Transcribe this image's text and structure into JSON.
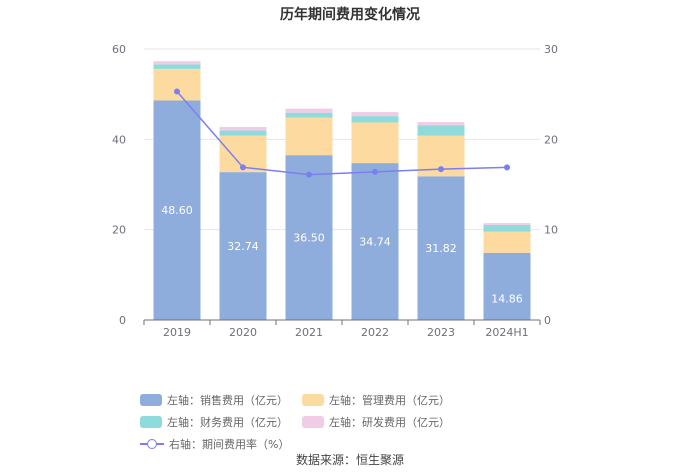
{
  "title": "历年期间费用变化情况",
  "source": "数据来源：恒生聚源",
  "colors": {
    "sales": "#8eaddc",
    "admin": "#fddaa0",
    "finance": "#8fdbdb",
    "rnd": "#f0cce6",
    "rate": "#7b7fef",
    "grid": "#e6e6e6",
    "axis": "#6e7079"
  },
  "legend": [
    {
      "key": "sales",
      "label": "左轴：销售费用（亿元）",
      "kind": "bar"
    },
    {
      "key": "admin",
      "label": "左轴：管理费用（亿元）",
      "kind": "bar"
    },
    {
      "key": "finance",
      "label": "左轴：财务费用（亿元）",
      "kind": "bar"
    },
    {
      "key": "rnd",
      "label": "左轴：研发费用（亿元）",
      "kind": "bar"
    },
    {
      "key": "rate",
      "label": "右轴：期间费用率（%）",
      "kind": "line"
    }
  ],
  "chart_data": {
    "type": "bar",
    "stacked": true,
    "categories": [
      "2019",
      "2020",
      "2021",
      "2022",
      "2023",
      "2024H1"
    ],
    "left_axis": {
      "ticks": [
        "0",
        "20",
        "40",
        "60"
      ],
      "ylim": [
        0,
        60
      ]
    },
    "right_axis": {
      "ticks": [
        "0",
        "10",
        "20",
        "30"
      ],
      "ylim": [
        0,
        30
      ]
    },
    "series": [
      {
        "key": "sales",
        "name": "左轴：销售费用（亿元）",
        "axis": "left",
        "values": [
          48.6,
          32.74,
          36.5,
          34.74,
          31.82,
          14.86
        ],
        "labels": [
          "48.60",
          "32.74",
          "36.50",
          "34.74",
          "31.82",
          "14.86"
        ]
      },
      {
        "key": "admin",
        "name": "左轴：管理费用（亿元）",
        "axis": "left",
        "values": [
          7.0,
          8.1,
          8.3,
          9.0,
          9.0,
          4.7
        ]
      },
      {
        "key": "finance",
        "name": "左轴：财务费用（亿元）",
        "axis": "left",
        "values": [
          1.0,
          1.1,
          1.1,
          1.4,
          2.3,
          1.5
        ]
      },
      {
        "key": "rnd",
        "name": "左轴：研发费用（亿元）",
        "axis": "left",
        "values": [
          0.7,
          0.8,
          0.9,
          0.9,
          0.7,
          0.4
        ]
      },
      {
        "key": "rate",
        "name": "右轴：期间费用率（%）",
        "axis": "right",
        "type": "line",
        "values": [
          25.3,
          16.9,
          16.1,
          16.4,
          16.7,
          16.9
        ]
      }
    ],
    "legend_position": "bottom",
    "grid": true
  }
}
